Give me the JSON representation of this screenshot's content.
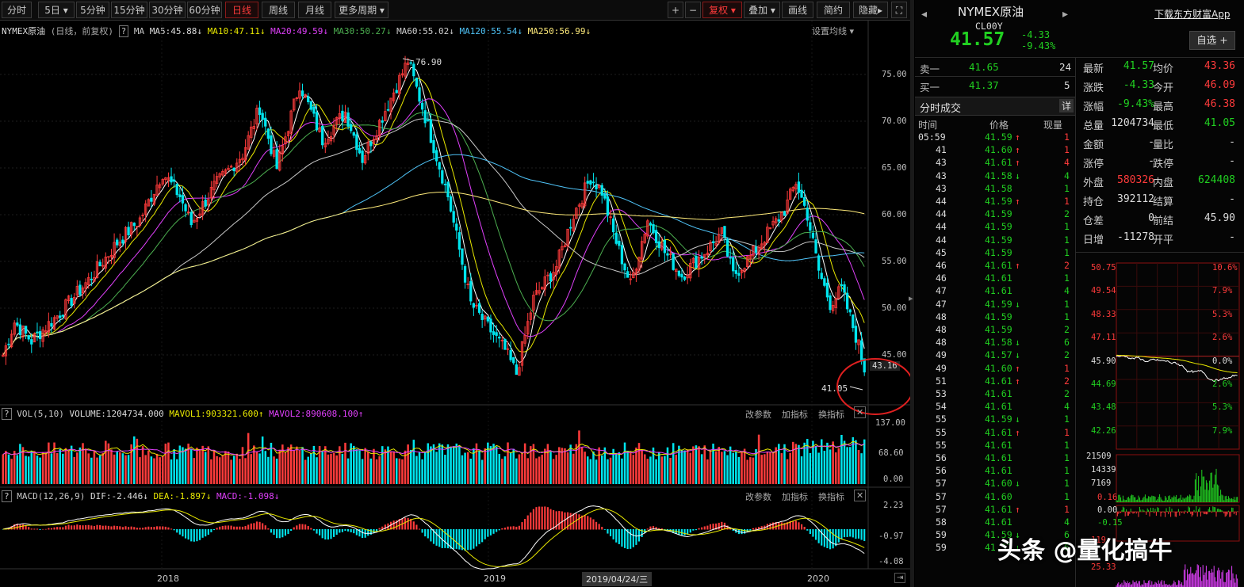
{
  "toolbar": {
    "tabs": [
      "分时",
      "5日",
      "5分钟",
      "15分钟",
      "30分钟",
      "60分钟",
      "日线",
      "周线",
      "月线",
      "更多周期"
    ],
    "active_tab": "日线",
    "plus": "+",
    "minus": "−",
    "fuquan": "复权",
    "diejia": "叠加",
    "huaxian": "画线",
    "jianyue": "简约",
    "yincang": "隐藏"
  },
  "legend": {
    "title": "NYMEX原油",
    "sub": "(日线，前复权)",
    "q": "?",
    "ma": "MA",
    "ma5": "MA5:45.88",
    "ma10": "MA10:47.11",
    "ma20": "MA20:49.59",
    "ma30": "MA30:50.27",
    "ma60": "MA60:55.02",
    "ma120": "MA120:55.54",
    "ma250": "MA250:56.99",
    "setting": "设置均线"
  },
  "vol_legend": {
    "name": "VOL(5,10)",
    "volume": "VOLUME:1204734.000",
    "mavol1": "MAVOL1:903321.600",
    "mavol2": "MAVOL2:890608.100"
  },
  "macd_legend": {
    "name": "MACD(12,26,9)",
    "dif": "DIF:-2.446",
    "dea": "DEA:-1.897",
    "macd": "MACD:-1.098"
  },
  "panel_links": {
    "gaicanshu": "改参数",
    "jiazhibiao": "加指标",
    "huanzhibiao": "换指标",
    "close": "✕"
  },
  "x_labels": {
    "y2018": "2018",
    "y2019": "2019",
    "date": "2019/04/24/三",
    "y2020": "2020"
  },
  "annotations": {
    "high": "76.90",
    "low": "41.05",
    "last": "43.16"
  },
  "right": {
    "title": "NYMEX原油",
    "code": "CL00Y",
    "price": "41.57",
    "change": "-4.33",
    "pct": "-9.43%",
    "download": "下载东方财富App",
    "zixuan": "自选 +",
    "sell_label": "卖一",
    "sell_price": "41.65",
    "sell_vol": "24",
    "buy_label": "买一",
    "buy_price": "41.37",
    "buy_vol": "5",
    "ticks_title": "分时成交",
    "ticks_btn": "详",
    "ticks_headers": [
      "时间",
      "价格",
      "现量"
    ],
    "stats": [
      {
        "l1": "最新",
        "v1": "41.57",
        "l2": "均价",
        "v2": "43.36"
      },
      {
        "l1": "涨跌",
        "v1": "-4.33",
        "l2": "今开",
        "v2": "46.09"
      },
      {
        "l1": "涨幅",
        "v1": "-9.43%",
        "l2": "最高",
        "v2": "46.38"
      },
      {
        "l1": "总量",
        "v1": "1204734",
        "l2": "最低",
        "v2": "41.05"
      },
      {
        "l1": "金额",
        "v1": "-",
        "l2": "量比",
        "v2": "-"
      },
      {
        "l1": "涨停",
        "v1": "-",
        "l2": "跌停",
        "v2": "-"
      },
      {
        "l1": "外盘",
        "v1": "580326",
        "l2": "内盘",
        "v2": "624408"
      },
      {
        "l1": "持仓",
        "v1": "392112",
        "l2": "结算",
        "v2": "-"
      },
      {
        "l1": "仓差",
        "v1": "0",
        "l2": "前结",
        "v2": "45.90"
      },
      {
        "l1": "日增",
        "v1": "-11278",
        "l2": "开平",
        "v2": "-"
      }
    ],
    "mini_left": [
      "50.75",
      "49.54",
      "48.33",
      "47.11",
      "45.90",
      "44.69",
      "43.48",
      "42.26"
    ],
    "mini_right": [
      "10.6%",
      "7.9%",
      "5.3%",
      "2.6%",
      "0.0%",
      "2.6%",
      "5.3%",
      "7.9%"
    ],
    "mini_vol": [
      "21509",
      "14339",
      "7169"
    ],
    "mini_macd": [
      "0.16",
      "0.00",
      "-0.15"
    ],
    "mini_cut": [
      "119",
      "25.33"
    ]
  },
  "watermark": "头条 @量化搞牛",
  "chart_data": {
    "type": "candlestick",
    "price_ticks": [
      "75.00",
      "70.00",
      "65.00",
      "60.00",
      "55.00",
      "50.00",
      "45.00"
    ],
    "vol_ticks": [
      "137.00",
      "68.60",
      "0.00"
    ],
    "macd_ticks": [
      "2.23",
      "-0.97",
      "-4.08"
    ],
    "ylim": [
      40,
      78
    ],
    "anchors": [
      {
        "i": 0,
        "p": 45.0
      },
      {
        "i": 4,
        "p": 48.5
      },
      {
        "i": 10,
        "p": 46.5
      },
      {
        "i": 20,
        "p": 49.5
      },
      {
        "i": 30,
        "p": 53.0
      },
      {
        "i": 40,
        "p": 57.0
      },
      {
        "i": 48,
        "p": 59.5
      },
      {
        "i": 56,
        "p": 64.5
      },
      {
        "i": 62,
        "p": 62.0
      },
      {
        "i": 66,
        "p": 59.0
      },
      {
        "i": 74,
        "p": 63.0
      },
      {
        "i": 84,
        "p": 66.5
      },
      {
        "i": 90,
        "p": 71.5
      },
      {
        "i": 96,
        "p": 65.0
      },
      {
        "i": 104,
        "p": 74.0
      },
      {
        "i": 112,
        "p": 68.0
      },
      {
        "i": 120,
        "p": 71.0
      },
      {
        "i": 126,
        "p": 66.0
      },
      {
        "i": 136,
        "p": 72.5
      },
      {
        "i": 142,
        "p": 76.5
      },
      {
        "i": 148,
        "p": 70.5
      },
      {
        "i": 156,
        "p": 62.0
      },
      {
        "i": 164,
        "p": 50.5
      },
      {
        "i": 170,
        "p": 48.0
      },
      {
        "i": 176,
        "p": 45.5
      },
      {
        "i": 180,
        "p": 43.0
      },
      {
        "i": 186,
        "p": 51.0
      },
      {
        "i": 194,
        "p": 54.5
      },
      {
        "i": 200,
        "p": 60.0
      },
      {
        "i": 206,
        "p": 64.0
      },
      {
        "i": 210,
        "p": 62.5
      },
      {
        "i": 214,
        "p": 58.0
      },
      {
        "i": 220,
        "p": 52.5
      },
      {
        "i": 226,
        "p": 59.5
      },
      {
        "i": 232,
        "p": 56.0
      },
      {
        "i": 238,
        "p": 53.5
      },
      {
        "i": 246,
        "p": 56.0
      },
      {
        "i": 252,
        "p": 58.0
      },
      {
        "i": 256,
        "p": 53.5
      },
      {
        "i": 262,
        "p": 55.5
      },
      {
        "i": 268,
        "p": 58.0
      },
      {
        "i": 274,
        "p": 60.5
      },
      {
        "i": 278,
        "p": 63.5
      },
      {
        "i": 282,
        "p": 60.0
      },
      {
        "i": 286,
        "p": 54.0
      },
      {
        "i": 290,
        "p": 50.5
      },
      {
        "i": 294,
        "p": 52.0
      },
      {
        "i": 300,
        "p": 46.0
      },
      {
        "i": 302,
        "p": 43.16
      }
    ]
  }
}
